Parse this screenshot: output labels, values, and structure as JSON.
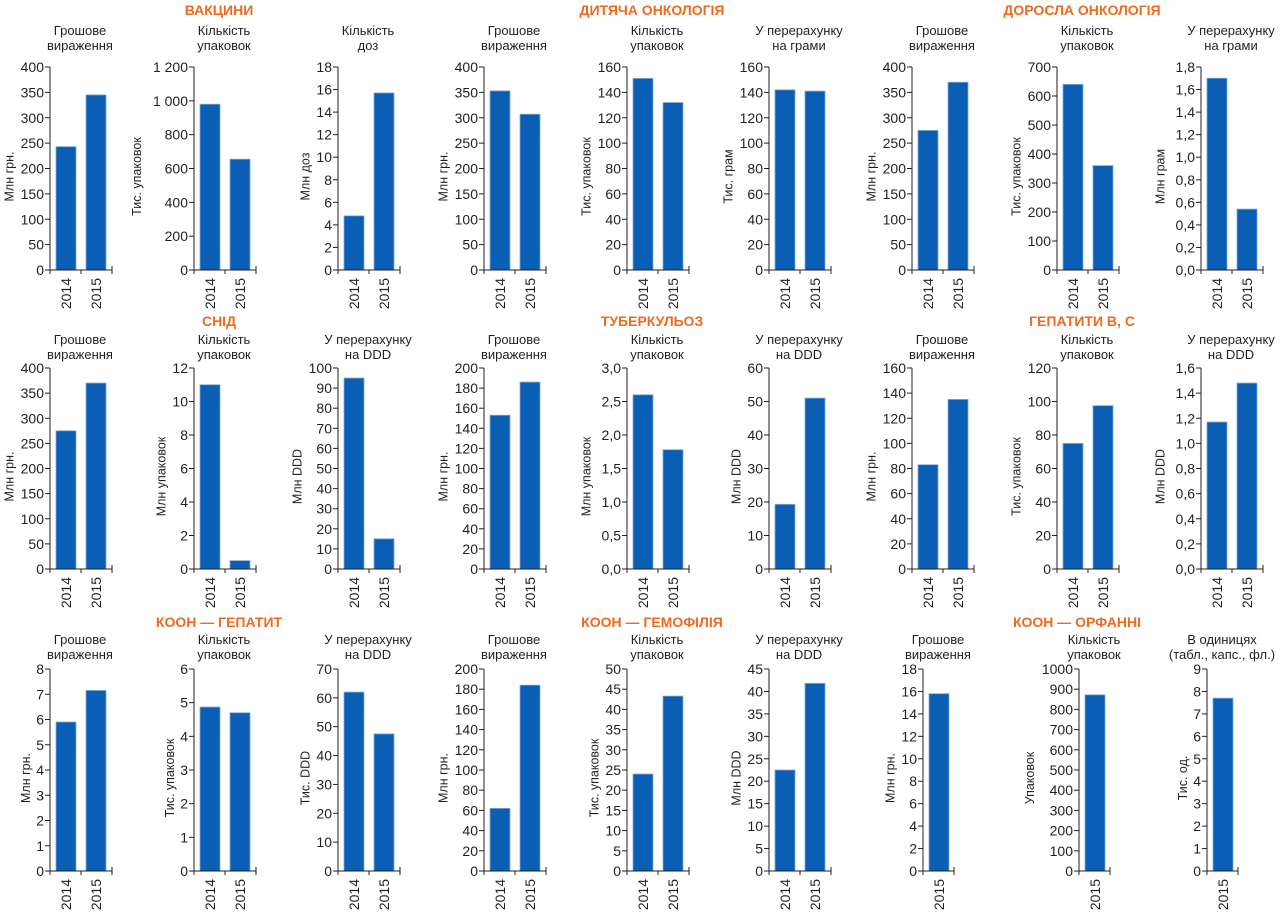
{
  "colors": {
    "bar": "#0a5fb4",
    "section_title": "#ee6a1f",
    "text": "#231f20"
  },
  "chart_data": [
    {
      "section": "ВАКЦИНИ",
      "type": "bar",
      "title": "Грошове вираження",
      "ylabel": "Млн грн.",
      "categories": [
        "2014",
        "2015"
      ],
      "values": [
        243,
        345
      ],
      "ylim": [
        0,
        400
      ],
      "yticks": [
        "0",
        "50",
        "100",
        "150",
        "200",
        "250",
        "300",
        "350",
        "400"
      ]
    },
    {
      "section": "ВАКЦИНИ",
      "type": "bar",
      "title": "Кількість упаковок",
      "ylabel": "Тис. упаковок",
      "categories": [
        "2014",
        "2015"
      ],
      "values": [
        980,
        655
      ],
      "ylim": [
        0,
        1200
      ],
      "yticks": [
        "0",
        "200",
        "400",
        "600",
        "800",
        "1 000",
        "1 200"
      ]
    },
    {
      "section": "ВАКЦИНИ",
      "type": "bar",
      "title": "Кількість доз",
      "ylabel": "Млн доз",
      "categories": [
        "2014",
        "2015"
      ],
      "values": [
        4.8,
        15.7
      ],
      "ylim": [
        0,
        18
      ],
      "yticks": [
        "0",
        "2",
        "4",
        "6",
        "8",
        "10",
        "12",
        "14",
        "16",
        "18"
      ]
    },
    {
      "section": "ДИТЯЧА ОНКОЛОГІЯ",
      "type": "bar",
      "title": "Грошове вираження",
      "ylabel": "Млн грн.",
      "categories": [
        "2014",
        "2015"
      ],
      "values": [
        353,
        307
      ],
      "ylim": [
        0,
        400
      ],
      "yticks": [
        "0",
        "50",
        "100",
        "150",
        "200",
        "250",
        "300",
        "350",
        "400"
      ]
    },
    {
      "section": "ДИТЯЧА ОНКОЛОГІЯ",
      "type": "bar",
      "title": "Кількість упаковок",
      "ylabel": "Тис. упаковок",
      "categories": [
        "2014",
        "2015"
      ],
      "values": [
        151,
        132
      ],
      "ylim": [
        0,
        160
      ],
      "yticks": [
        "0",
        "20",
        "40",
        "60",
        "80",
        "100",
        "120",
        "140",
        "160"
      ]
    },
    {
      "section": "ДИТЯЧА ОНКОЛОГІЯ",
      "type": "bar",
      "title": "У перерахунку на грами",
      "ylabel": "Тис. грам",
      "categories": [
        "2014",
        "2015"
      ],
      "values": [
        142,
        141
      ],
      "ylim": [
        0,
        160
      ],
      "yticks": [
        "0",
        "20",
        "40",
        "60",
        "80",
        "100",
        "120",
        "140",
        "160"
      ]
    },
    {
      "section": "ДОРОСЛА ОНКОЛОГІЯ",
      "type": "bar",
      "title": "Грошове вираження",
      "ylabel": "Млн грн.",
      "categories": [
        "2014",
        "2015"
      ],
      "values": [
        275,
        370
      ],
      "ylim": [
        0,
        400
      ],
      "yticks": [
        "0",
        "50",
        "100",
        "150",
        "200",
        "250",
        "300",
        "350",
        "400"
      ]
    },
    {
      "section": "ДОРОСЛА ОНКОЛОГІЯ",
      "type": "bar",
      "title": "Кількість упаковок",
      "ylabel": "Тис. упаковок",
      "categories": [
        "2014",
        "2015"
      ],
      "values": [
        640,
        360
      ],
      "ylim": [
        0,
        700
      ],
      "yticks": [
        "0",
        "100",
        "200",
        "300",
        "400",
        "500",
        "600",
        "700"
      ]
    },
    {
      "section": "ДОРОСЛА ОНКОЛОГІЯ",
      "type": "bar",
      "title": "У перерахунку на грами",
      "ylabel": "Млн грам",
      "categories": [
        "2014",
        "2015"
      ],
      "values": [
        1.7,
        0.54
      ],
      "ylim": [
        0,
        1.8
      ],
      "yticks": [
        "0,0",
        "0,2",
        "0,4",
        "0,6",
        "0,8",
        "1,0",
        "1,2",
        "1,4",
        "1,6",
        "1,8"
      ]
    },
    {
      "section": "СНІД",
      "type": "bar",
      "title": "Грошове вираження",
      "ylabel": "Млн грн.",
      "categories": [
        "2014",
        "2015"
      ],
      "values": [
        275,
        370
      ],
      "ylim": [
        0,
        400
      ],
      "yticks": [
        "0",
        "50",
        "100",
        "150",
        "200",
        "250",
        "300",
        "350",
        "400"
      ]
    },
    {
      "section": "СНІД",
      "type": "bar",
      "title": "Кількість упаковок",
      "ylabel": "Млн упаковок",
      "categories": [
        "2014",
        "2015"
      ],
      "values": [
        11.0,
        0.5
      ],
      "ylim": [
        0,
        12
      ],
      "yticks": [
        "0",
        "2",
        "4",
        "6",
        "8",
        "10",
        "12"
      ]
    },
    {
      "section": "СНІД",
      "type": "bar",
      "title": "У перерахунку на DDD",
      "ylabel": "Млн DDD",
      "categories": [
        "2014",
        "2015"
      ],
      "values": [
        95,
        15
      ],
      "ylim": [
        0,
        100
      ],
      "yticks": [
        "0",
        "10",
        "20",
        "30",
        "40",
        "50",
        "60",
        "70",
        "80",
        "90",
        "100"
      ]
    },
    {
      "section": "ТУБЕРКУЛЬОЗ",
      "type": "bar",
      "title": "Грошове вираження",
      "ylabel": "Млн грн.",
      "categories": [
        "2014",
        "2015"
      ],
      "values": [
        153,
        186
      ],
      "ylim": [
        0,
        200
      ],
      "yticks": [
        "0",
        "20",
        "40",
        "60",
        "80",
        "100",
        "120",
        "140",
        "160",
        "180",
        "200"
      ]
    },
    {
      "section": "ТУБЕРКУЛЬОЗ",
      "type": "bar",
      "title": "Кількість упаковок",
      "ylabel": "Млн упаковок",
      "categories": [
        "2014",
        "2015"
      ],
      "values": [
        2.6,
        1.78
      ],
      "ylim": [
        0,
        3.0
      ],
      "yticks": [
        "0,0",
        "0,5",
        "1,0",
        "1,5",
        "2,0",
        "2,5",
        "3,0"
      ]
    },
    {
      "section": "ТУБЕРКУЛЬОЗ",
      "type": "bar",
      "title": "У перерахунку на DDD",
      "ylabel": "Млн DDD",
      "categories": [
        "2014",
        "2015"
      ],
      "values": [
        19.3,
        51
      ],
      "ylim": [
        0,
        60
      ],
      "yticks": [
        "0",
        "10",
        "20",
        "30",
        "40",
        "50",
        "60"
      ]
    },
    {
      "section": "ГЕПАТИТИ В, С",
      "type": "bar",
      "title": "Грошове вираження",
      "ylabel": "Млн грн.",
      "categories": [
        "2014",
        "2015"
      ],
      "values": [
        83,
        135
      ],
      "ylim": [
        0,
        160
      ],
      "yticks": [
        "0",
        "20",
        "40",
        "60",
        "80",
        "100",
        "120",
        "140",
        "160"
      ]
    },
    {
      "section": "ГЕПАТИТИ В, С",
      "type": "bar",
      "title": "Кількість упаковок",
      "ylabel": "Тис. упаковок",
      "categories": [
        "2014",
        "2015"
      ],
      "values": [
        75,
        97.5
      ],
      "ylim": [
        0,
        120
      ],
      "yticks": [
        "0",
        "20",
        "40",
        "60",
        "80",
        "100",
        "120"
      ]
    },
    {
      "section": "ГЕПАТИТИ В, С",
      "type": "bar",
      "title": "У перерахунку на DDD",
      "ylabel": "Млн DDD",
      "categories": [
        "2014",
        "2015"
      ],
      "values": [
        1.17,
        1.48
      ],
      "ylim": [
        0,
        1.6
      ],
      "yticks": [
        "0,0",
        "0,2",
        "0,4",
        "0,6",
        "0,8",
        "1,0",
        "1,2",
        "1,4",
        "1,6"
      ]
    },
    {
      "section": "КООН — ГЕПАТИТ",
      "type": "bar",
      "title": "Грошове вираження",
      "ylabel": "Млн грн.",
      "categories": [
        "2014",
        "2015"
      ],
      "values": [
        5.9,
        7.15
      ],
      "ylim": [
        0,
        8
      ],
      "yticks": [
        "0",
        "1",
        "2",
        "3",
        "4",
        "5",
        "6",
        "7",
        "8"
      ]
    },
    {
      "section": "КООН — ГЕПАТИТ",
      "type": "bar",
      "title": "Кількість упаковок",
      "ylabel": "Тис. упаковок",
      "categories": [
        "2014",
        "2015"
      ],
      "values": [
        4.87,
        4.7
      ],
      "ylim": [
        0,
        6
      ],
      "yticks": [
        "0",
        "1",
        "2",
        "3",
        "4",
        "5",
        "6"
      ]
    },
    {
      "section": "КООН — ГЕПАТИТ",
      "type": "bar",
      "title": "У перерахунку на DDD",
      "ylabel": "Тис. DDD",
      "categories": [
        "2014",
        "2015"
      ],
      "values": [
        62,
        47.5
      ],
      "ylim": [
        0,
        70
      ],
      "yticks": [
        "0",
        "10",
        "20",
        "30",
        "40",
        "50",
        "60",
        "70"
      ]
    },
    {
      "section": "КООН — ГЕМОФІЛІЯ",
      "type": "bar",
      "title": "Грошове вираження",
      "ylabel": "Млн грн.",
      "categories": [
        "2014",
        "2015"
      ],
      "values": [
        62,
        184
      ],
      "ylim": [
        0,
        200
      ],
      "yticks": [
        "0",
        "20",
        "40",
        "60",
        "80",
        "100",
        "120",
        "140",
        "160",
        "180",
        "200"
      ]
    },
    {
      "section": "КООН — ГЕМОФІЛІЯ",
      "type": "bar",
      "title": "Кількість упаковок",
      "ylabel": "Тис. упаковок",
      "categories": [
        "2014",
        "2015"
      ],
      "values": [
        24,
        43.3
      ],
      "ylim": [
        0,
        50
      ],
      "yticks": [
        "0",
        "5",
        "10",
        "15",
        "20",
        "25",
        "30",
        "35",
        "40",
        "45",
        "50"
      ]
    },
    {
      "section": "КООН — ГЕМОФІЛІЯ",
      "type": "bar",
      "title": "У перерахунку на DDD",
      "ylabel": "Млн DDD",
      "categories": [
        "2014",
        "2015"
      ],
      "values": [
        22.5,
        41.8
      ],
      "ylim": [
        0,
        45
      ],
      "yticks": [
        "0",
        "5",
        "10",
        "15",
        "20",
        "25",
        "30",
        "35",
        "40",
        "45"
      ]
    },
    {
      "section": "КООН — ОРФАННІ",
      "type": "bar",
      "title": "Грошове вираження",
      "ylabel": "Млн грн.",
      "categories": [
        "2015"
      ],
      "values": [
        15.8
      ],
      "ylim": [
        0,
        18
      ],
      "yticks": [
        "0",
        "2",
        "4",
        "6",
        "8",
        "10",
        "12",
        "14",
        "16",
        "18"
      ]
    },
    {
      "section": "КООН — ОРФАННІ",
      "type": "bar",
      "title": "Кількість упаковок",
      "ylabel": "Упаковок",
      "categories": [
        "2015"
      ],
      "values": [
        872
      ],
      "ylim": [
        0,
        1000
      ],
      "yticks": [
        "0",
        "100",
        "200",
        "300",
        "400",
        "500",
        "600",
        "700",
        "800",
        "900",
        "1000"
      ]
    },
    {
      "section": "КООН — ОРФАННІ",
      "type": "bar",
      "title": "В одиницях (табл., капс.,  фл.)",
      "ylabel": "Тис. од.",
      "categories": [
        "2015"
      ],
      "values": [
        7.7
      ],
      "ylim": [
        0,
        9
      ],
      "yticks": [
        "0",
        "1",
        "2",
        "3",
        "4",
        "5",
        "6",
        "7",
        "8",
        "9"
      ]
    }
  ],
  "sections": [
    "ВАКЦИНИ",
    "ДИТЯЧА ОНКОЛОГІЯ",
    "ДОРОСЛА ОНКОЛОГІЯ",
    "СНІД",
    "ТУБЕРКУЛЬОЗ",
    "ГЕПАТИТИ В, С",
    "КООН — ГЕПАТИТ",
    "КООН — ГЕМОФІЛІЯ",
    "КООН — ОРФАННІ"
  ],
  "subtitles": {
    "money": [
      "Грошове",
      "вираження"
    ],
    "packs": [
      "Кількість",
      "упаковок"
    ],
    "doses": [
      "Кількість",
      "доз"
    ],
    "grams": [
      "У перерахунку",
      "на грами"
    ],
    "ddd": [
      "У перерахунку",
      "на DDD"
    ],
    "units": [
      "В одиницях",
      "(табл., капс.,  фл.)"
    ]
  }
}
